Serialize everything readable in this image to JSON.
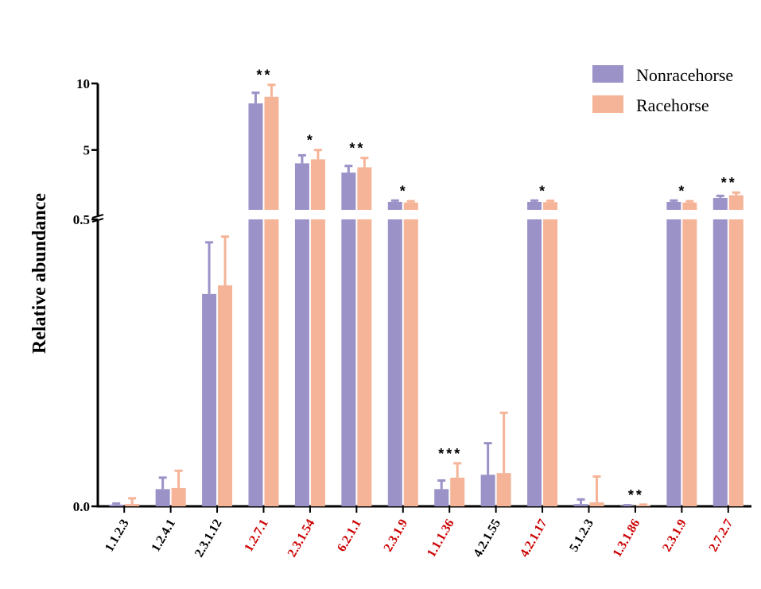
{
  "chart_data": {
    "type": "bar",
    "ylabel": "Relative abundance",
    "y_axis": {
      "broken": true,
      "lower_segment": [
        0.0,
        0.5
      ],
      "upper_segment": [
        0.5,
        10
      ],
      "tick_labels": [
        "0.0",
        "0.5",
        "5",
        "10"
      ]
    },
    "categories": [
      "1.1.2.3",
      "1.2.4.1",
      "2.3.1.12",
      "1.2.7.1",
      "2.3.1.54",
      "6.2.1.1",
      "2.3.1.9",
      "1.1.1.36",
      "4.2.1.55",
      "4.2.1.17",
      "5.1.2.3",
      "1.3.1.86",
      "2.3.1.9",
      "2.7.2.7"
    ],
    "category_colors": [
      "#000000",
      "#000000",
      "#000000",
      "#cc0000",
      "#cc0000",
      "#cc0000",
      "#cc0000",
      "#cc0000",
      "#000000",
      "#cc0000",
      "#000000",
      "#cc0000",
      "#cc0000",
      "#cc0000"
    ],
    "series": [
      {
        "name": "Nonracehorse",
        "color": "#9b92c8",
        "values": [
          0.003,
          0.03,
          0.37,
          8.5,
          4.0,
          3.3,
          1.1,
          0.03,
          0.055,
          1.1,
          0.004,
          0.001,
          1.1,
          1.4
        ],
        "errors": [
          0.002,
          0.02,
          0.09,
          0.8,
          0.6,
          0.5,
          0.1,
          0.015,
          0.055,
          0.1,
          0.008,
          0.001,
          0.1,
          0.15
        ]
      },
      {
        "name": "Racehorse",
        "color": "#f5b497",
        "values": [
          0.004,
          0.032,
          0.385,
          9.0,
          4.3,
          3.7,
          1.05,
          0.05,
          0.058,
          1.08,
          0.007,
          0.002,
          1.05,
          1.6
        ],
        "errors": [
          0.01,
          0.03,
          0.085,
          0.9,
          0.7,
          0.7,
          0.1,
          0.025,
          0.105,
          0.1,
          0.045,
          0.001,
          0.1,
          0.2
        ]
      }
    ],
    "significance": [
      "",
      "",
      "",
      "**",
      "*",
      "**",
      "*",
      "***",
      "",
      "*",
      "",
      "**",
      "*",
      "**"
    ],
    "legend": {
      "position": "top-right"
    },
    "grid": false
  }
}
